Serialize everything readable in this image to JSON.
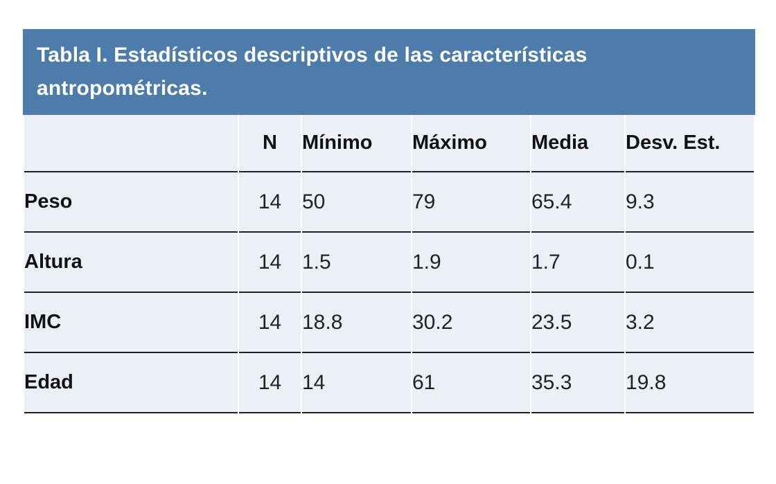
{
  "table": {
    "title": "Tabla I. Estadísticos descriptivos de las características antropométricas.",
    "columns": [
      "",
      "N",
      "Mínimo",
      "Máximo",
      "Media",
      "Desv. Est."
    ],
    "rows": [
      {
        "label": "Peso",
        "values": [
          "14",
          "50",
          "79",
          "65.4",
          "9.3"
        ]
      },
      {
        "label": "Altura",
        "values": [
          "14",
          "1.5",
          "1.9",
          "1.7",
          "0.1"
        ]
      },
      {
        "label": "IMC",
        "values": [
          "14",
          "18.8",
          "30.2",
          "23.5",
          "3.2"
        ]
      },
      {
        "label": "Edad",
        "values": [
          "14",
          "14",
          "61",
          "35.3",
          "19.8"
        ]
      }
    ],
    "colors": {
      "header_bg": "#4d7caa",
      "title_text": "#ffffff",
      "row_bg": "#eceff6",
      "line": "#1f1f1f",
      "body_text": "#111111",
      "num_text": "#222222"
    }
  }
}
